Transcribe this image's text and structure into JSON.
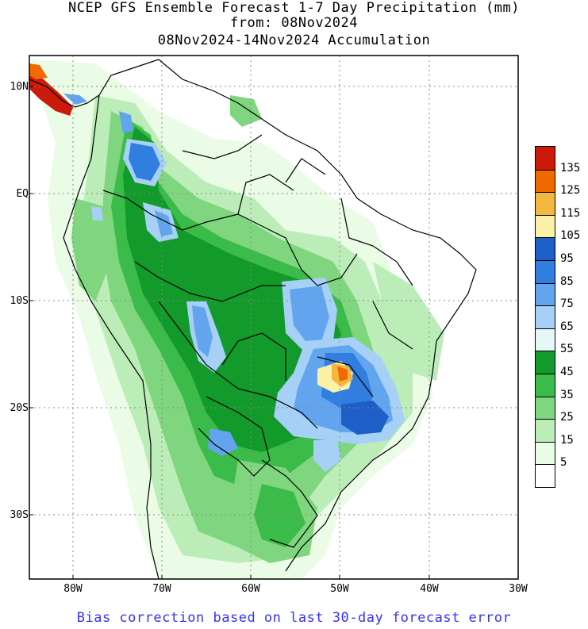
{
  "title": {
    "line1": "NCEP GFS Ensemble Forecast 1-7 Day Precipitation (mm)",
    "line2": "from: 08Nov2024",
    "line3": "08Nov2024-14Nov2024 Accumulation"
  },
  "y_axis_labels": [
    "10N",
    "EQ",
    "10S",
    "20S",
    "30S"
  ],
  "x_axis_labels": [
    "80W",
    "70W",
    "60W",
    "50W",
    "40W",
    "30W"
  ],
  "legend": {
    "labels": [
      "135",
      "125",
      "115",
      "105",
      "95",
      "85",
      "75",
      "65",
      "55",
      "45",
      "35",
      "25",
      "15",
      "5"
    ],
    "colors": [
      "#cc1a0a",
      "#f06a00",
      "#f3b740",
      "#fbf0a8",
      "#1d5fc6",
      "#2f7ee0",
      "#62a5ee",
      "#a6d0f5",
      "#e6f7f7",
      "#129a2b",
      "#3bbb4a",
      "#7fd67e",
      "#bcedb8",
      "#eafbe6",
      "#ffffff"
    ]
  },
  "footer": "Bias correction based on last 30-day forecast error"
}
